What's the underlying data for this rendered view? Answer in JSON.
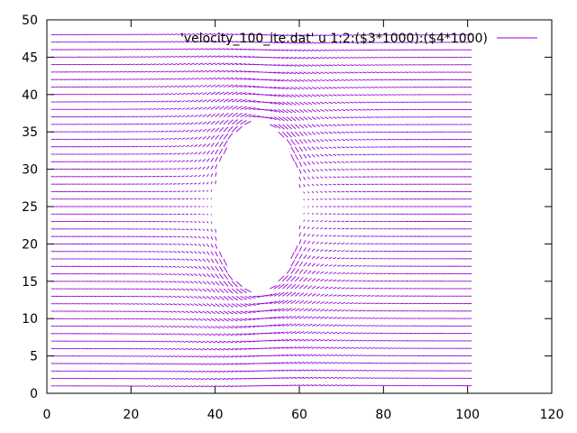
{
  "chart_data": {
    "type": "vector_field",
    "title": "",
    "xlabel": "",
    "ylabel": "",
    "xlim": [
      0,
      120
    ],
    "ylim": [
      0,
      50
    ],
    "x_ticks": [
      0,
      20,
      40,
      60,
      80,
      100,
      120
    ],
    "y_ticks": [
      0,
      5,
      10,
      15,
      20,
      25,
      30,
      35,
      40,
      45,
      50
    ],
    "grid": false,
    "legend_position": "top-right",
    "series": [
      {
        "name": "'velocity_100_ite.dat' u 1:2:($3*1000):($4*1000)",
        "color": "#9400d3",
        "field": {
          "x_range": [
            1,
            100
          ],
          "x_step": 1,
          "y_range": [
            1,
            48
          ],
          "y_step": 1,
          "obstacle": {
            "shape": "ellipse",
            "center": [
              50,
              25
            ],
            "radius_x": 10,
            "radius_y": 11
          },
          "uniform_velocity": 1.0
        }
      }
    ]
  }
}
